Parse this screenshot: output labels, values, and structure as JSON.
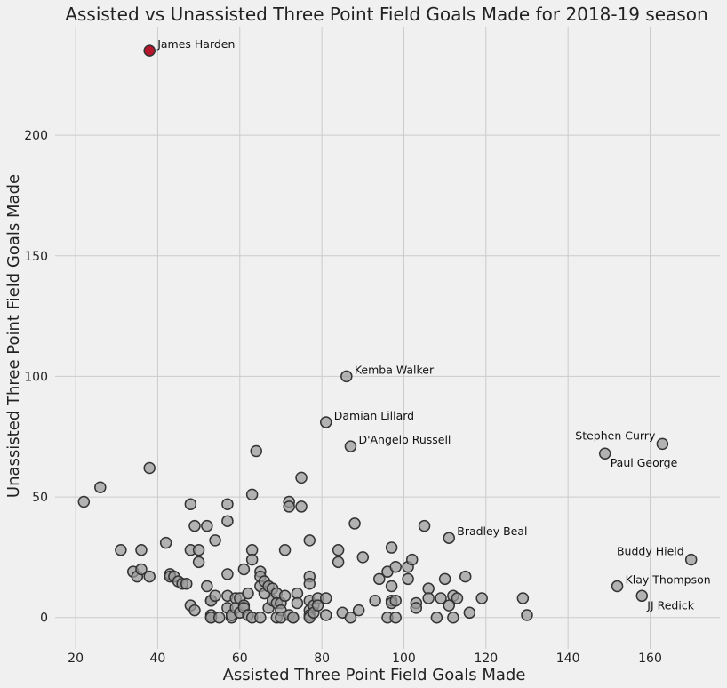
{
  "chart_data": {
    "type": "scatter",
    "title": "Assisted vs Unassisted Three Point Field Goals Made for 2018-19 season",
    "xlabel": "Assisted Three Point Field Goals Made",
    "ylabel": "Unassisted Three Point Field Goals Made",
    "xlim": [
      15,
      177
    ],
    "ylim": [
      -13,
      245
    ],
    "xticks": [
      20,
      40,
      60,
      80,
      100,
      120,
      140,
      160
    ],
    "yticks": [
      0,
      50,
      100,
      150,
      200
    ],
    "grid": true,
    "colors": {
      "point": "#9a9a9a",
      "highlight": "#b5162c",
      "edge": "#333333",
      "grid": "#cbcbcb",
      "background": "#f0f0f0"
    },
    "highlight": {
      "name": "James Harden",
      "x": 38,
      "y": 235
    },
    "labeled_points": [
      {
        "name": "Kemba Walker",
        "x": 86,
        "y": 100,
        "pos": "right"
      },
      {
        "name": "Damian Lillard",
        "x": 81,
        "y": 81,
        "pos": "right"
      },
      {
        "name": "D'Angelo Russell",
        "x": 87,
        "y": 71,
        "pos": "right"
      },
      {
        "name": "Stephen Curry",
        "x": 163,
        "y": 72,
        "pos": "left-up"
      },
      {
        "name": "Paul George",
        "x": 149,
        "y": 68,
        "pos": "right-down"
      },
      {
        "name": "Bradley Beal",
        "x": 111,
        "y": 33,
        "pos": "right"
      },
      {
        "name": "Buddy Hield",
        "x": 170,
        "y": 24,
        "pos": "left-up"
      },
      {
        "name": "Klay Thompson",
        "x": 152,
        "y": 13,
        "pos": "right"
      },
      {
        "name": "JJ Redick",
        "x": 158,
        "y": 9,
        "pos": "right-down"
      }
    ],
    "points": [
      [
        22,
        48
      ],
      [
        26,
        54
      ],
      [
        31,
        28
      ],
      [
        34,
        19
      ],
      [
        35,
        17
      ],
      [
        36,
        28
      ],
      [
        36,
        20
      ],
      [
        38,
        62
      ],
      [
        38,
        17
      ],
      [
        42,
        31
      ],
      [
        43,
        18
      ],
      [
        43,
        17
      ],
      [
        44,
        17
      ],
      [
        45,
        15
      ],
      [
        46,
        14
      ],
      [
        47,
        14
      ],
      [
        48,
        47
      ],
      [
        48,
        28
      ],
      [
        48,
        5
      ],
      [
        49,
        38
      ],
      [
        49,
        3
      ],
      [
        50,
        28
      ],
      [
        50,
        23
      ],
      [
        52,
        38
      ],
      [
        52,
        13
      ],
      [
        53,
        7
      ],
      [
        53,
        7
      ],
      [
        53,
        1
      ],
      [
        53,
        0
      ],
      [
        53,
        0
      ],
      [
        54,
        32
      ],
      [
        54,
        9
      ],
      [
        55,
        0
      ],
      [
        57,
        47
      ],
      [
        57,
        40
      ],
      [
        57,
        18
      ],
      [
        57,
        9
      ],
      [
        57,
        4
      ],
      [
        58,
        0
      ],
      [
        58,
        1
      ],
      [
        59,
        8
      ],
      [
        59,
        4
      ],
      [
        60,
        2
      ],
      [
        60,
        8
      ],
      [
        61,
        20
      ],
      [
        61,
        5
      ],
      [
        61,
        4
      ],
      [
        62,
        10
      ],
      [
        62,
        1
      ],
      [
        63,
        51
      ],
      [
        63,
        28
      ],
      [
        63,
        24
      ],
      [
        63,
        0
      ],
      [
        64,
        69
      ],
      [
        65,
        19
      ],
      [
        65,
        17
      ],
      [
        65,
        13
      ],
      [
        65,
        0
      ],
      [
        66,
        15
      ],
      [
        66,
        10
      ],
      [
        67,
        13
      ],
      [
        67,
        4
      ],
      [
        68,
        12
      ],
      [
        68,
        7
      ],
      [
        69,
        10
      ],
      [
        69,
        6
      ],
      [
        69,
        0
      ],
      [
        70,
        6
      ],
      [
        70,
        3
      ],
      [
        70,
        0
      ],
      [
        71,
        28
      ],
      [
        71,
        9
      ],
      [
        72,
        48
      ],
      [
        72,
        46
      ],
      [
        72,
        1
      ],
      [
        73,
        0
      ],
      [
        73,
        0
      ],
      [
        74,
        10
      ],
      [
        74,
        6
      ],
      [
        75,
        58
      ],
      [
        75,
        46
      ],
      [
        77,
        32
      ],
      [
        77,
        17
      ],
      [
        77,
        14
      ],
      [
        77,
        7
      ],
      [
        77,
        3
      ],
      [
        77,
        1
      ],
      [
        77,
        0
      ],
      [
        78,
        5
      ],
      [
        78,
        2
      ],
      [
        79,
        8
      ],
      [
        79,
        5
      ],
      [
        81,
        8
      ],
      [
        81,
        1
      ],
      [
        84,
        28
      ],
      [
        84,
        23
      ],
      [
        85,
        2
      ],
      [
        87,
        0
      ],
      [
        88,
        39
      ],
      [
        89,
        3
      ],
      [
        90,
        25
      ],
      [
        93,
        7
      ],
      [
        94,
        16
      ],
      [
        96,
        19
      ],
      [
        96,
        0
      ],
      [
        97,
        29
      ],
      [
        97,
        13
      ],
      [
        97,
        7
      ],
      [
        97,
        6
      ],
      [
        98,
        21
      ],
      [
        98,
        7
      ],
      [
        98,
        0
      ],
      [
        101,
        21
      ],
      [
        101,
        16
      ],
      [
        102,
        24
      ],
      [
        103,
        6
      ],
      [
        103,
        4
      ],
      [
        105,
        38
      ],
      [
        106,
        12
      ],
      [
        106,
        8
      ],
      [
        108,
        0
      ],
      [
        109,
        8
      ],
      [
        110,
        16
      ],
      [
        111,
        5
      ],
      [
        112,
        0
      ],
      [
        112,
        9
      ],
      [
        113,
        8
      ],
      [
        115,
        17
      ],
      [
        116,
        2
      ],
      [
        119,
        8
      ],
      [
        129,
        8
      ],
      [
        130,
        1
      ]
    ]
  }
}
